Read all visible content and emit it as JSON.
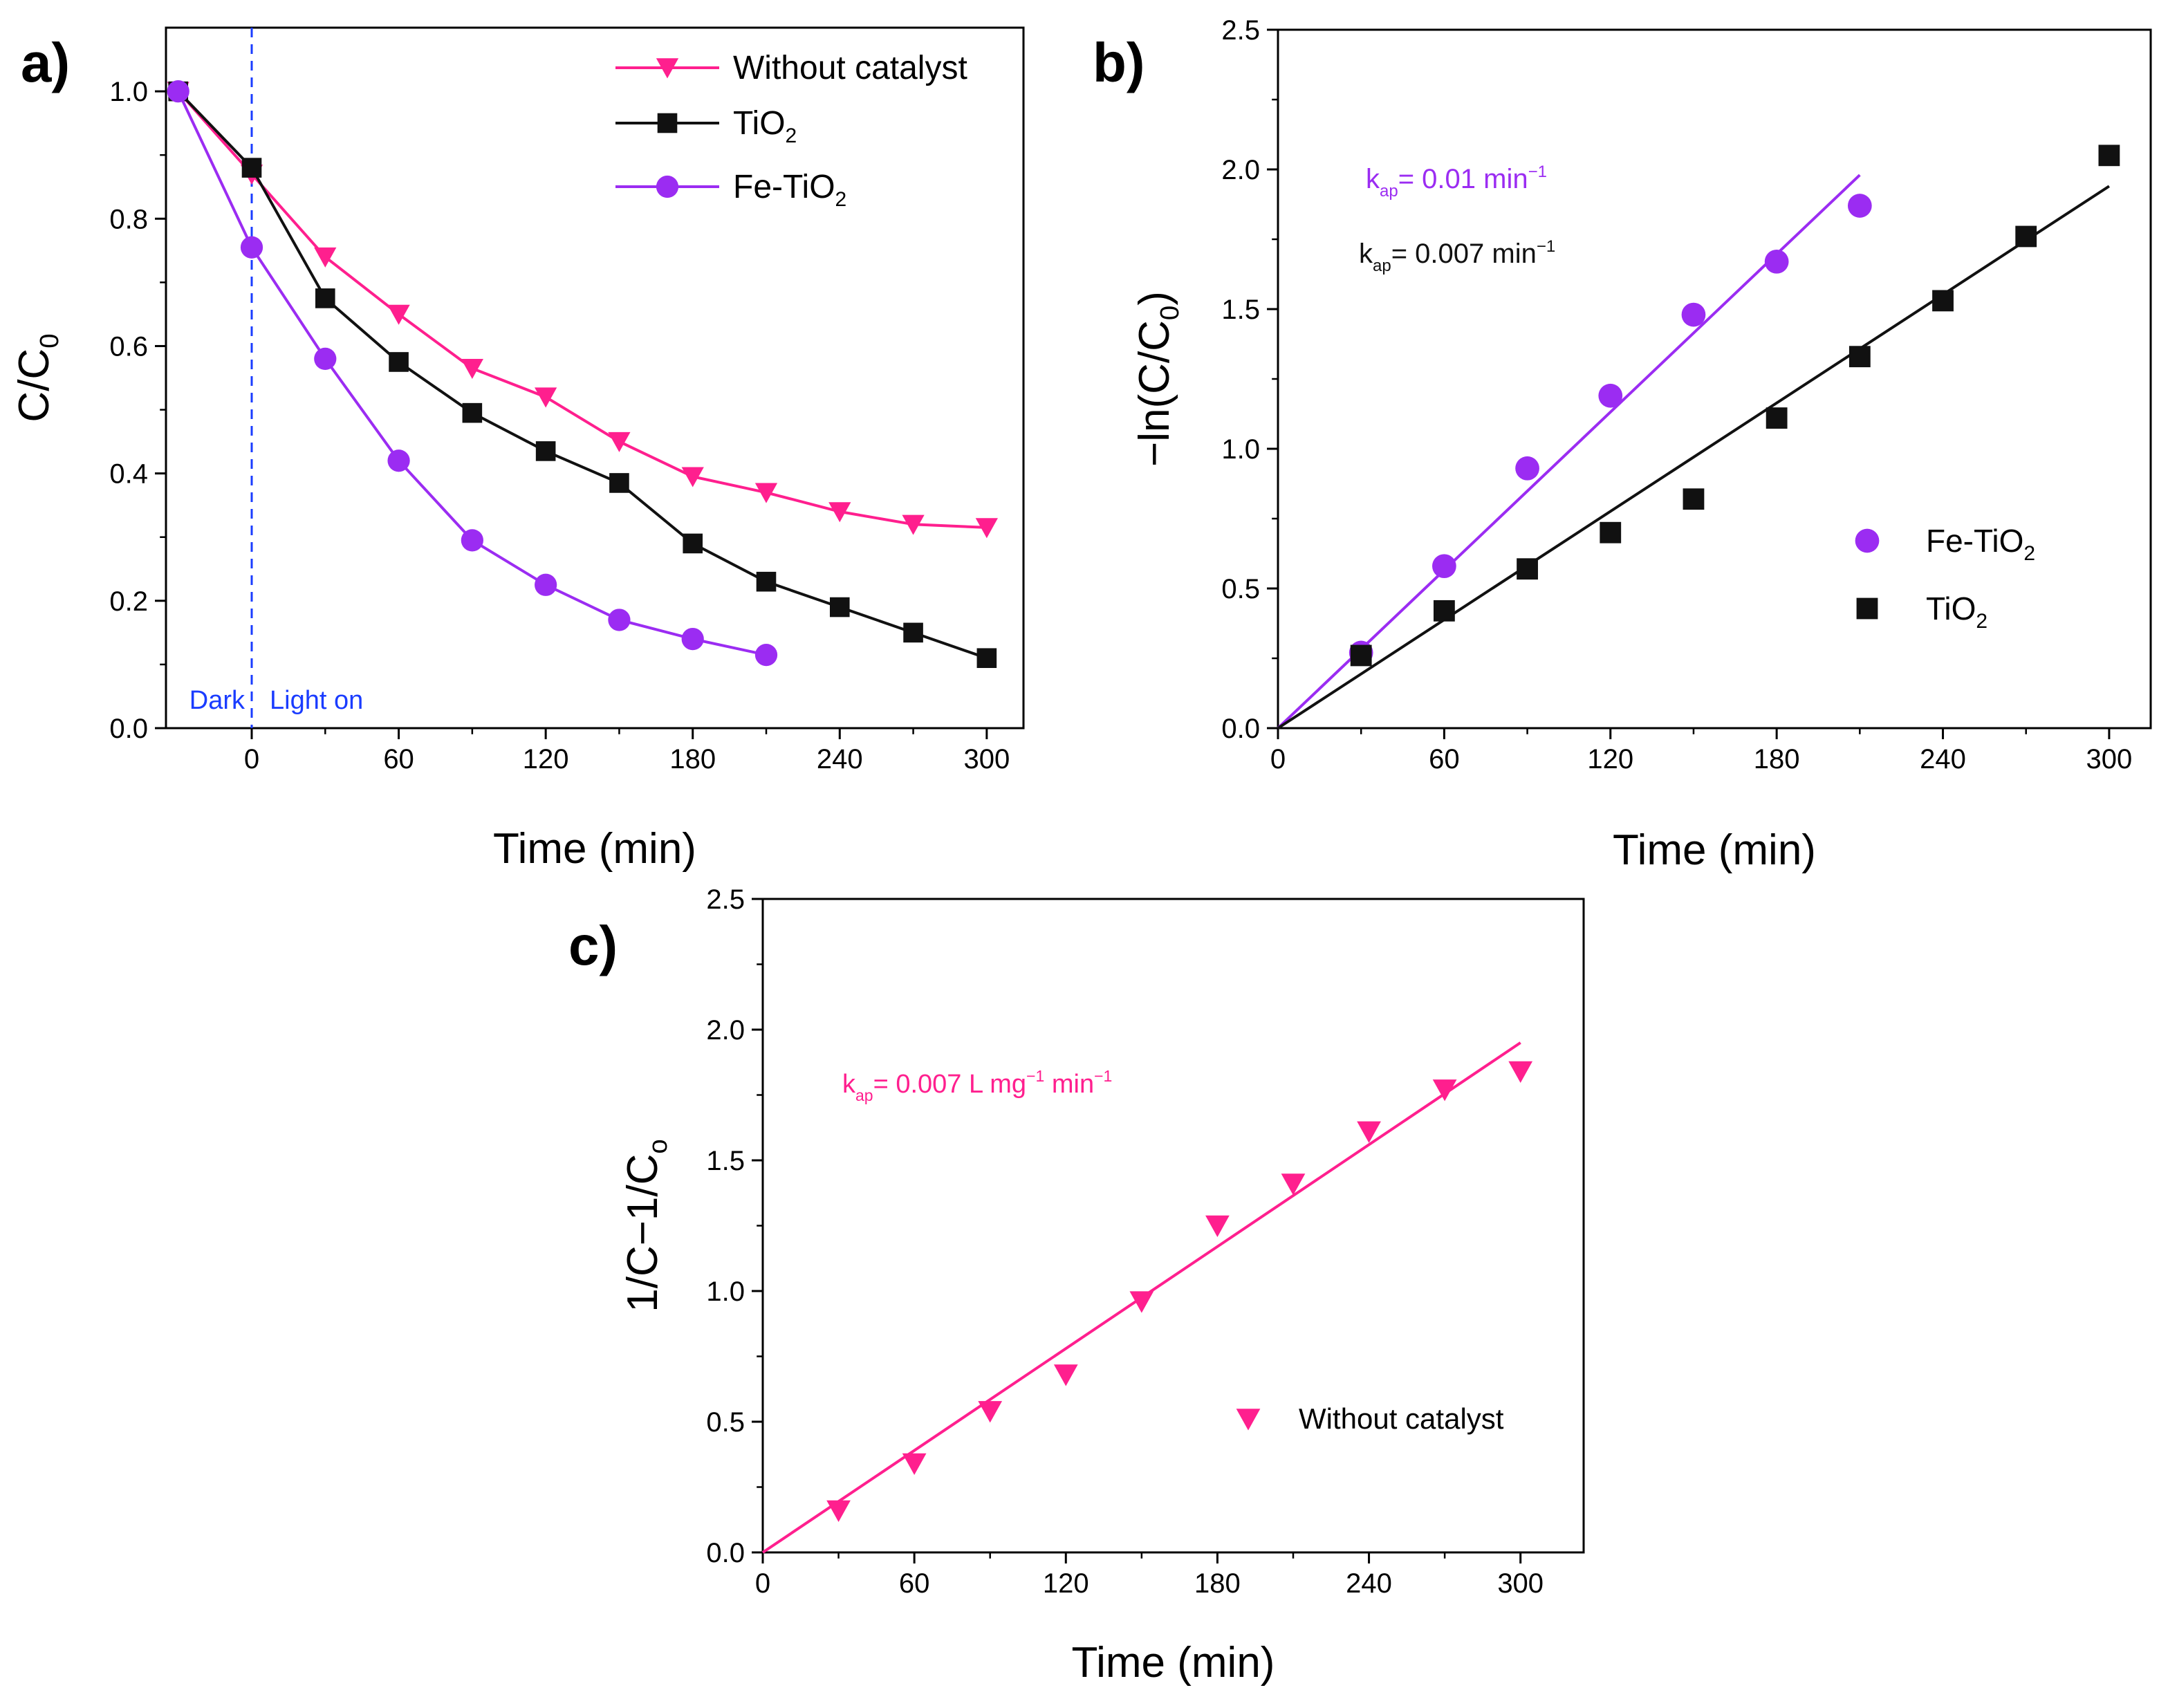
{
  "colors": {
    "pink": "#ff1f8e",
    "black": "#111111",
    "purple": "#9b2cf2",
    "blue": "#1a3cff"
  },
  "chart_data": [
    {
      "id": "a",
      "panel_label": "a)",
      "type": "line",
      "xlabel": "Time (min)",
      "ylabel": "C/C0",
      "xlim": [
        -35,
        315
      ],
      "ylim": [
        0.0,
        1.1
      ],
      "xticks": [
        0,
        60,
        120,
        180,
        240,
        300
      ],
      "yticks": [
        0.0,
        0.2,
        0.4,
        0.6,
        0.8,
        1.0
      ],
      "ytick_labels": [
        "0.0",
        "0.2",
        "0.4",
        "0.6",
        "0.8",
        "1.0"
      ],
      "legend_position": "top-right",
      "annotations": {
        "dark": "Dark",
        "light": "Light on"
      },
      "series": [
        {
          "name": "Without catalyst",
          "marker": "triangle-down",
          "color": "#ff1f8e",
          "x": [
            -30,
            0,
            30,
            60,
            90,
            120,
            150,
            180,
            210,
            240,
            270,
            300
          ],
          "y": [
            1.0,
            0.87,
            0.74,
            0.65,
            0.565,
            0.52,
            0.45,
            0.395,
            0.37,
            0.34,
            0.32,
            0.315
          ]
        },
        {
          "name": "TiO2",
          "marker": "square",
          "color": "#111111",
          "x": [
            -30,
            0,
            30,
            60,
            90,
            120,
            150,
            180,
            210,
            240,
            270,
            300
          ],
          "y": [
            1.0,
            0.88,
            0.675,
            0.575,
            0.495,
            0.435,
            0.385,
            0.29,
            0.23,
            0.19,
            0.15,
            0.11
          ]
        },
        {
          "name": "Fe-TiO2",
          "marker": "circle",
          "color": "#9b2cf2",
          "x": [
            -30,
            0,
            30,
            60,
            90,
            120,
            150,
            180,
            210
          ],
          "y": [
            1.0,
            0.755,
            0.58,
            0.42,
            0.295,
            0.225,
            0.17,
            0.14,
            0.115
          ]
        }
      ]
    },
    {
      "id": "b",
      "panel_label": "b)",
      "type": "scatter",
      "xlabel": "Time (min)",
      "ylabel": "-ln(C/C0)",
      "xlim": [
        0,
        315
      ],
      "ylim": [
        0.0,
        2.5
      ],
      "xticks": [
        0,
        60,
        120,
        180,
        240,
        300
      ],
      "yticks": [
        0.0,
        0.5,
        1.0,
        1.5,
        2.0,
        2.5
      ],
      "ytick_labels": [
        "0.0",
        "0.5",
        "1.0",
        "1.5",
        "2.0",
        "2.5"
      ],
      "legend_position": "center-right",
      "annotations": [
        {
          "k_text": "k",
          "sub": "ap",
          "rest": "= 0.01 min",
          "sup": "−1",
          "color": "#9b2cf2"
        },
        {
          "k_text": "k",
          "sub": "ap",
          "rest": "= 0.007 min",
          "sup": "−1",
          "color": "#111111"
        }
      ],
      "series": [
        {
          "name": "Fe-TiO2",
          "marker": "circle",
          "color": "#9b2cf2",
          "x": [
            30,
            60,
            90,
            120,
            150,
            180,
            210
          ],
          "y": [
            0.27,
            0.58,
            0.93,
            1.19,
            1.48,
            1.67,
            1.87
          ],
          "fit": {
            "x": [
              0,
              210
            ],
            "y": [
              0.0,
              1.98
            ]
          }
        },
        {
          "name": "TiO2",
          "marker": "square",
          "color": "#111111",
          "x": [
            30,
            60,
            90,
            120,
            150,
            180,
            210,
            240,
            270,
            300
          ],
          "y": [
            0.26,
            0.42,
            0.57,
            0.7,
            0.82,
            1.11,
            1.33,
            1.53,
            1.76,
            2.05
          ],
          "fit": {
            "x": [
              0,
              300
            ],
            "y": [
              0.0,
              1.94
            ]
          }
        }
      ]
    },
    {
      "id": "c",
      "panel_label": "c)",
      "type": "scatter",
      "xlabel": "Time (min)",
      "ylabel": "1/C−1/Co",
      "xlim": [
        0,
        325
      ],
      "ylim": [
        0.0,
        2.5
      ],
      "xticks": [
        0,
        60,
        120,
        180,
        240,
        300
      ],
      "yticks": [
        0.0,
        0.5,
        1.0,
        1.5,
        2.0,
        2.5
      ],
      "ytick_labels": [
        "0.0",
        "0.5",
        "1.0",
        "1.5",
        "2.0",
        "2.5"
      ],
      "legend_position": "bottom-right",
      "annotations": [
        {
          "k_text": "k",
          "sub": "ap",
          "rest": "= 0.007 L mg",
          "sup": "−1",
          "rest2": " min",
          "sup2": "−1",
          "color": "#ff1f8e"
        }
      ],
      "series": [
        {
          "name": "Without catalyst",
          "marker": "triangle-down",
          "color": "#ff1f8e",
          "x": [
            30,
            60,
            90,
            120,
            150,
            180,
            210,
            240,
            270,
            300
          ],
          "y": [
            0.16,
            0.34,
            0.54,
            0.68,
            0.96,
            1.25,
            1.41,
            1.61,
            1.77,
            1.84
          ],
          "fit": {
            "x": [
              0,
              300
            ],
            "y": [
              0.0,
              1.95
            ]
          }
        }
      ]
    }
  ]
}
